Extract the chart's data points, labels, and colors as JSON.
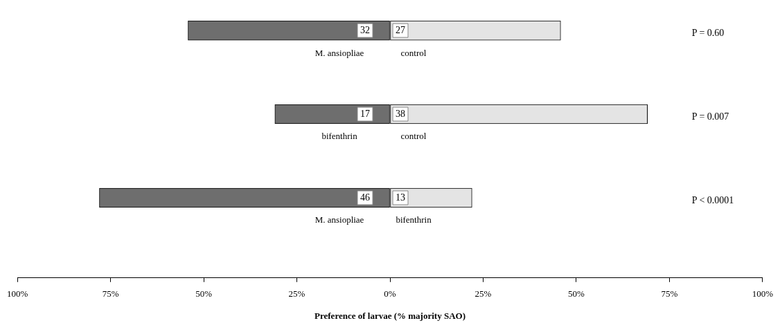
{
  "chart_data": {
    "type": "bar",
    "orientation": "horizontal",
    "stacked": true,
    "xlabel": "Preference of larvae (% majority SAO)",
    "categories": [
      "P = 0.60",
      "P = 0.007",
      "P < 0.0001"
    ],
    "series": [
      {
        "color": "#6e6e6e",
        "values": [
          -54.2,
          -30.9,
          -78.0
        ]
      },
      {
        "color": "#e4e4e4",
        "values": [
          45.8,
          69.1,
          22.0
        ]
      }
    ],
    "xlim": [
      -100,
      100
    ],
    "xticks": [
      {
        "value": -100,
        "label": "100%"
      },
      {
        "value": -75,
        "label": "75%"
      },
      {
        "value": -50,
        "label": "50%"
      },
      {
        "value": -25,
        "label": "25%"
      },
      {
        "value": 0,
        "label": "0%"
      },
      {
        "value": 25,
        "label": "25%"
      },
      {
        "value": 50,
        "label": "50%"
      },
      {
        "value": 75,
        "label": "75%"
      },
      {
        "value": 100,
        "label": "100%"
      }
    ],
    "annotations": [
      "32",
      "27",
      "M. ansiopliae",
      "control",
      "17",
      "38",
      "bifenthrin",
      "control",
      "46",
      "13",
      "M. ansiopliae",
      "bifenthrin"
    ],
    "grid": false,
    "legend": false
  }
}
